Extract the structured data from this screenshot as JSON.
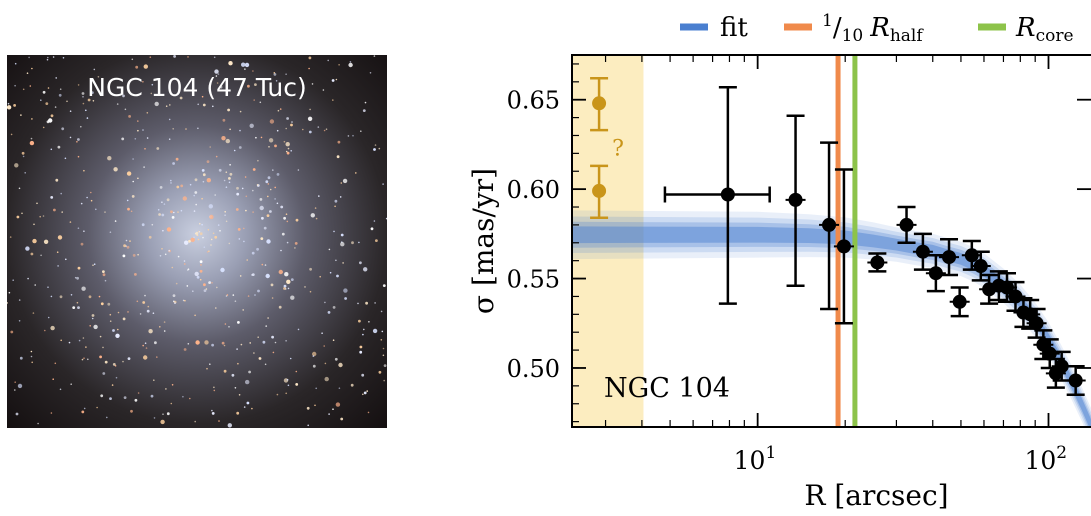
{
  "image_label": "NGC 104 (47 Tuc)",
  "chart_data": {
    "type": "scatter",
    "title": "",
    "xlabel": "R [arcsec]",
    "ylabel": "σ [mas/yr]",
    "x_scale": "log",
    "xlim": [
      2.3,
      140
    ],
    "ylim": [
      0.467,
      0.675
    ],
    "x_ticks": [
      {
        "value": 10,
        "base": "10",
        "exp": "1"
      },
      {
        "value": 100,
        "base": "10",
        "exp": "2"
      }
    ],
    "y_ticks": [
      {
        "value": 0.5,
        "label": "0.50"
      },
      {
        "value": 0.55,
        "label": "0.55"
      },
      {
        "value": 0.6,
        "label": "0.60"
      },
      {
        "value": 0.65,
        "label": "0.65"
      }
    ],
    "annotation": "NGC 104",
    "legend": {
      "placement": "top",
      "entries": [
        {
          "label": "fit",
          "color": "#4a7fd0"
        },
        {
          "label": "1/10 R_half",
          "num": "1",
          "den": "10",
          "symbol": "R",
          "sub": "half",
          "color": "#f08a4b"
        },
        {
          "label": "R_core",
          "symbol": "R",
          "sub": "core",
          "color": "#8dc34a"
        }
      ]
    },
    "shaded_region": {
      "x": [
        2.3,
        4.05
      ],
      "color": "#fcedc0"
    },
    "vertical_lines": [
      {
        "name": "1/10 R_half",
        "x": 18.9,
        "color": "#f08a4b"
      },
      {
        "name": "R_core",
        "x": 21.6,
        "color": "#8dc34a"
      }
    ],
    "fit_band": {
      "color": "#4a7fd0",
      "x": [
        2.3,
        10,
        15,
        20,
        25,
        30,
        35,
        40,
        45,
        50,
        55,
        60,
        70,
        80,
        90,
        100,
        110,
        120,
        130,
        140
      ],
      "y": [
        0.5745,
        0.5745,
        0.574,
        0.573,
        0.571,
        0.569,
        0.567,
        0.5655,
        0.563,
        0.561,
        0.558,
        0.5545,
        0.546,
        0.537,
        0.527,
        0.516,
        0.504,
        0.492,
        0.48,
        0.468
      ],
      "spread": [
        0.0085,
        0.008,
        0.0075,
        0.007,
        0.0065,
        0.006,
        0.006,
        0.006,
        0.006,
        0.006,
        0.006,
        0.006,
        0.006,
        0.006,
        0.006,
        0.006,
        0.006,
        0.006,
        0.006,
        0.006
      ]
    },
    "outlier_label": "?",
    "series": [
      {
        "color": "#000000",
        "points": [
          {
            "x": 7.9,
            "y": 0.597,
            "yerr": [
              0.061,
              0.06
            ],
            "xerr": [
              4.8,
              11.0
            ]
          },
          {
            "x": 13.5,
            "y": 0.594,
            "yerr": [
              0.048,
              0.047
            ]
          },
          {
            "x": 17.6,
            "y": 0.58,
            "yerr": [
              0.047,
              0.046
            ]
          },
          {
            "x": 19.8,
            "y": 0.568,
            "yerr": [
              0.043,
              0.043
            ]
          },
          {
            "x": 25.8,
            "y": 0.559,
            "yerr": [
              0.005,
              0.005
            ]
          },
          {
            "x": 32.5,
            "y": 0.58,
            "yerr": [
              0.01,
              0.01
            ]
          },
          {
            "x": 37.0,
            "y": 0.565,
            "yerr": [
              0.01,
              0.01
            ]
          },
          {
            "x": 41.0,
            "y": 0.553,
            "yerr": [
              0.01,
              0.01
            ]
          },
          {
            "x": 45.5,
            "y": 0.562,
            "yerr": [
              0.01,
              0.01
            ]
          },
          {
            "x": 49.5,
            "y": 0.537,
            "yerr": [
              0.008,
              0.008
            ]
          },
          {
            "x": 54.5,
            "y": 0.563,
            "yerr": [
              0.008,
              0.008
            ]
          },
          {
            "x": 58.5,
            "y": 0.557,
            "yerr": [
              0.008,
              0.008
            ]
          },
          {
            "x": 62.5,
            "y": 0.544,
            "yerr": [
              0.008,
              0.008
            ]
          },
          {
            "x": 67.5,
            "y": 0.546,
            "yerr": [
              0.008,
              0.008
            ]
          },
          {
            "x": 72.0,
            "y": 0.545,
            "yerr": [
              0.008,
              0.008
            ]
          },
          {
            "x": 77.0,
            "y": 0.54,
            "yerr": [
              0.008,
              0.008
            ]
          },
          {
            "x": 82.0,
            "y": 0.531,
            "yerr": [
              0.008,
              0.008
            ]
          },
          {
            "x": 86.5,
            "y": 0.53,
            "yerr": [
              0.008,
              0.008
            ]
          },
          {
            "x": 91.0,
            "y": 0.525,
            "yerr": [
              0.008,
              0.008
            ]
          },
          {
            "x": 96.0,
            "y": 0.513,
            "yerr": [
              0.008,
              0.008
            ]
          },
          {
            "x": 101.0,
            "y": 0.508,
            "yerr": [
              0.008,
              0.008
            ]
          },
          {
            "x": 106.0,
            "y": 0.497,
            "yerr": [
              0.008,
              0.008
            ]
          },
          {
            "x": 111.0,
            "y": 0.501,
            "yerr": [
              0.008,
              0.008
            ]
          },
          {
            "x": 124.0,
            "y": 0.493,
            "yerr": [
              0.008,
              0.008
            ]
          }
        ]
      },
      {
        "color": "#c9951a",
        "points": [
          {
            "x": 2.85,
            "y": 0.648,
            "yerr": [
              0.015,
              0.014
            ]
          },
          {
            "x": 2.85,
            "y": 0.599,
            "yerr": [
              0.015,
              0.014
            ]
          }
        ]
      }
    ]
  }
}
